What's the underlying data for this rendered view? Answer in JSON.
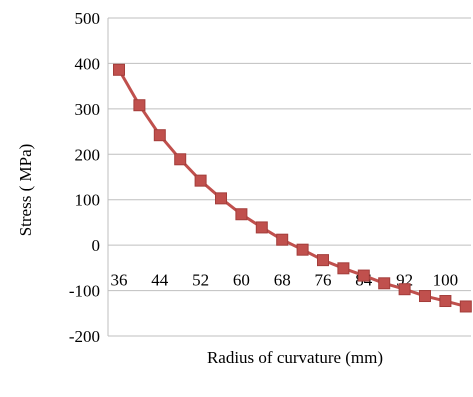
{
  "chart_data": {
    "type": "line",
    "xlabel": "Radius of curvature (mm)",
    "ylabel": "Stress ( MPa)",
    "ylim": [
      -200,
      500
    ],
    "y_ticks": [
      "500",
      "400",
      "300",
      "200",
      "100",
      "0",
      "-100",
      "-200"
    ],
    "x_tick_labels": [
      "36",
      "44",
      "52",
      "60",
      "68",
      "76",
      "84",
      "92",
      "100"
    ],
    "grid": "horizontal",
    "legend": "none",
    "series_color": "#c0504d",
    "x": [
      36,
      40,
      44,
      48,
      52,
      56,
      60,
      64,
      68,
      72,
      76,
      80,
      84,
      88,
      92,
      96,
      100,
      104
    ],
    "y": [
      386,
      308,
      242,
      189,
      142,
      103,
      68,
      39,
      12,
      -10,
      -33,
      -51,
      -67,
      -84,
      -97,
      -112,
      -123,
      -135
    ]
  }
}
